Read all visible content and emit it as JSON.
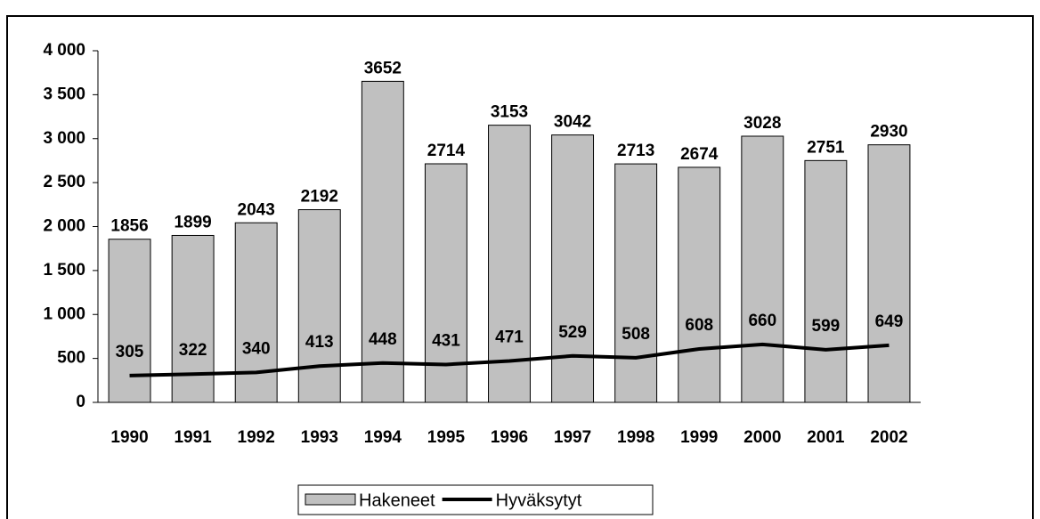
{
  "chart_data": {
    "type": "bar+line",
    "categories": [
      "1990",
      "1991",
      "1992",
      "1993",
      "1994",
      "1995",
      "1996",
      "1997",
      "1998",
      "1999",
      "2000",
      "2001",
      "2002"
    ],
    "series": [
      {
        "name": "Hakeneet",
        "type": "bar",
        "color": "#c0c0c0",
        "values": [
          1856,
          1899,
          2043,
          2192,
          3652,
          2714,
          3153,
          3042,
          2713,
          2674,
          3028,
          2751,
          2930
        ]
      },
      {
        "name": "Hyväksytyt",
        "type": "line",
        "color": "#000000",
        "values": [
          305,
          322,
          340,
          413,
          448,
          431,
          471,
          529,
          508,
          608,
          660,
          599,
          649
        ]
      }
    ],
    "ylim": [
      0,
      4000
    ],
    "yticks": [
      0,
      500,
      {
        "value": 1000,
        "label": "1 000"
      },
      {
        "value": 1500,
        "label": "1 500"
      },
      {
        "value": 2000,
        "label": "2 000"
      },
      {
        "value": 2500,
        "label": "2 500"
      },
      {
        "value": 3000,
        "label": "3 000"
      },
      {
        "value": 3500,
        "label": "3 500"
      },
      {
        "value": 4000,
        "label": "4 000"
      }
    ],
    "legend": "bottom"
  }
}
